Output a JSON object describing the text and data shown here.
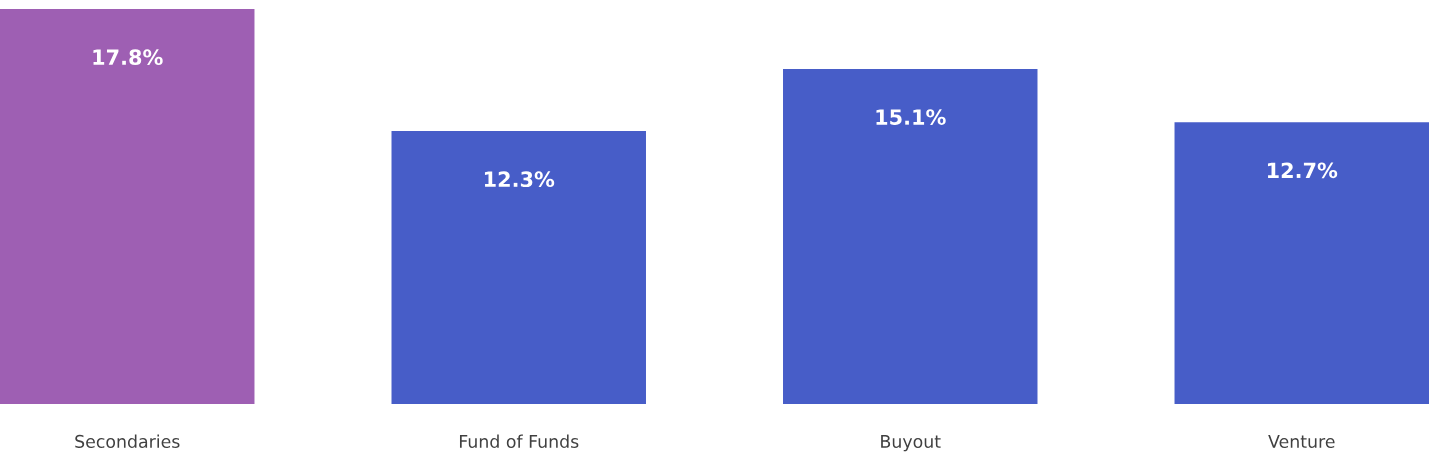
{
  "chart_data": {
    "type": "bar",
    "categories": [
      "Secondaries",
      "Fund of Funds",
      "Buyout",
      "Venture"
    ],
    "values": [
      17.8,
      12.3,
      15.1,
      12.7
    ],
    "colors": [
      "#9e5fb3",
      "#475dc8",
      "#475dc8",
      "#475dc8"
    ],
    "value_labels": [
      "17.8%",
      "12.3%",
      "15.1%",
      "12.7%"
    ],
    "ylim": [
      0,
      17.8
    ],
    "grid": false,
    "legend": false
  }
}
